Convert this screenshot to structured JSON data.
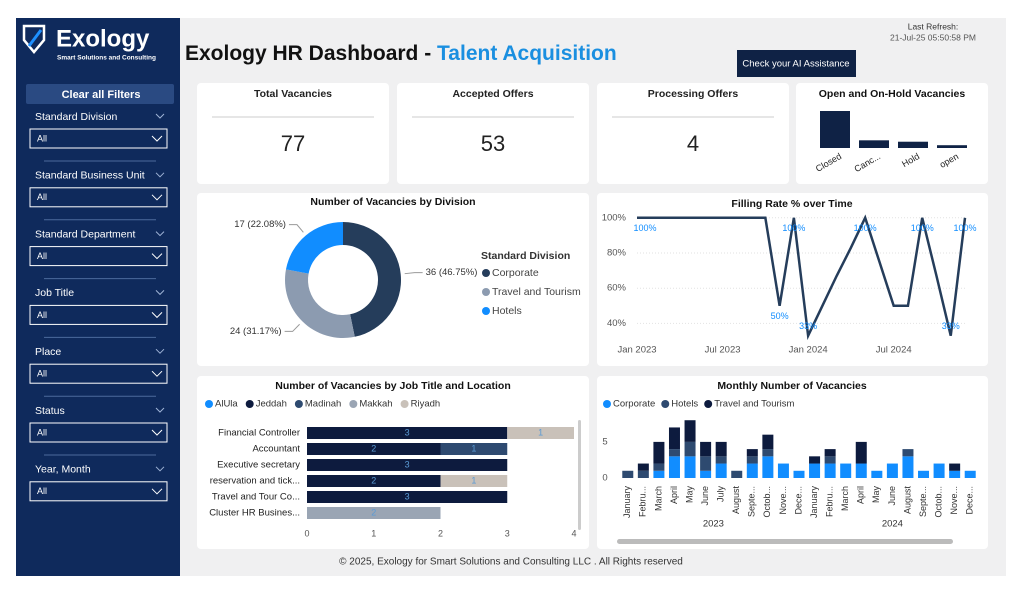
{
  "header": {
    "logo": "Exology",
    "tagline": "Smart Solutions and Consulting",
    "title": "Exology HR Dashboard - ",
    "title_accent": "Talent Acquisition",
    "refresh_label": "Last Refresh:",
    "refresh_time": "21-Jul-25 05:50:58 PM",
    "button": "Check your AI Assistance"
  },
  "sidebar": {
    "clear": "Clear all Filters",
    "filters": [
      {
        "label": "Standard Division",
        "value": "All"
      },
      {
        "label": "Standard Business Unit",
        "value": "All"
      },
      {
        "label": "Standard Department",
        "value": "All"
      },
      {
        "label": "Job Title",
        "value": "All"
      },
      {
        "label": "Place",
        "value": "All"
      },
      {
        "label": "Status",
        "value": "All"
      },
      {
        "label": "Year, Month",
        "value": "All"
      }
    ]
  },
  "kpis": [
    {
      "title": "Total Vacancies",
      "value": 77
    },
    {
      "title": "Accepted Offers",
      "value": 53
    },
    {
      "title": "Processing Offers",
      "value": 4
    }
  ],
  "chart_data": [
    {
      "type": "bar",
      "title": "Open and On-Hold Vacancies",
      "categories": [
        "Closed",
        "Canc...",
        "Hold",
        "open"
      ],
      "values": [
        53,
        11,
        9,
        4
      ],
      "color": "#0f2245"
    },
    {
      "type": "donut",
      "title": "Number of Vacancies by Division",
      "legend_title": "Standard Division",
      "categories": [
        "Corporate",
        "Travel and Tourism",
        "Hotels"
      ],
      "values": [
        36,
        24,
        17
      ],
      "value_labels": [
        "36 (46.75%)",
        "24 (31.17%)",
        "17 (22.08%)"
      ],
      "colors": [
        "#253d5b",
        "#8c9bb0",
        "#118dff"
      ]
    },
    {
      "type": "line",
      "title": "Filling Rate % over Time",
      "color": "#253d5b",
      "label_color": "#118dff",
      "x": [
        "2023-01",
        "2023-02",
        "2023-03",
        "2023-04",
        "2023-05",
        "2023-06",
        "2023-07",
        "2023-08",
        "2023-09",
        "2023-10",
        "2023-11",
        "2023-12",
        "2024-01",
        "2024-02",
        "2024-03",
        "2024-04",
        "2024-05",
        "2024-06",
        "2024-07",
        "2024-08",
        "2024-09",
        "2024-10",
        "2024-11",
        "2024-12"
      ],
      "values": [
        100,
        100,
        100,
        100,
        100,
        100,
        100,
        100,
        100,
        100,
        50,
        100,
        33,
        50,
        67,
        83,
        100,
        75,
        50,
        50,
        100,
        67,
        33,
        100
      ],
      "value_labels": [
        "100%",
        null,
        null,
        null,
        null,
        null,
        null,
        null,
        null,
        null,
        "50%",
        "100%",
        "33%",
        null,
        null,
        null,
        "100%",
        null,
        null,
        null,
        "100%",
        null,
        "33%",
        "100%"
      ],
      "xlim": [
        "2023-01",
        "2024-12"
      ],
      "xticks": [
        {
          "value": "2023-01",
          "label": "Jan 2023"
        },
        {
          "value": "2023-07",
          "label": "Jul 2023"
        },
        {
          "value": "2024-01",
          "label": "Jan 2024"
        },
        {
          "value": "2024-07",
          "label": "Jul 2024"
        }
      ],
      "ylim": [
        30,
        105
      ],
      "yticks": [
        {
          "value": 40,
          "label": "40%"
        },
        {
          "value": 60,
          "label": "60%"
        },
        {
          "value": 80,
          "label": "80%"
        },
        {
          "value": 100,
          "label": "100%"
        }
      ],
      "grid": true
    },
    {
      "type": "hbar",
      "title": "Number of Vacancies by Job Title and Location",
      "categories": [
        "Financial Controller",
        "Accountant",
        "Executive secretary",
        "reservation and tick...",
        "Travel and Tour Co...",
        "Cluster HR Busines..."
      ],
      "series": [
        {
          "name": "AlUla",
          "color": "#118dff",
          "values": [
            null,
            null,
            null,
            null,
            null,
            null
          ]
        },
        {
          "name": "Jeddah",
          "color": "#0d1b3e",
          "values": [
            3,
            2,
            3,
            2,
            3,
            null
          ]
        },
        {
          "name": "Madinah",
          "color": "#2e4a70",
          "values": [
            null,
            1,
            null,
            null,
            null,
            null
          ]
        },
        {
          "name": "Makkah",
          "color": "#9aa5b4",
          "values": [
            null,
            null,
            null,
            null,
            null,
            2
          ]
        },
        {
          "name": "Riyadh",
          "color": "#c9c1b9",
          "values": [
            1,
            null,
            null,
            1,
            null,
            null
          ]
        }
      ],
      "xlim": [
        0,
        4
      ],
      "xticks": [
        0,
        1,
        2,
        3,
        4
      ]
    },
    {
      "type": "column",
      "title": "Monthly Number of Vacancies",
      "categories": [
        "January",
        "Febru...",
        "March",
        "April",
        "May",
        "June",
        "July",
        "August",
        "Septe...",
        "Octob...",
        "Nove...",
        "Dece...",
        "January",
        "Febru...",
        "March",
        "April",
        "May",
        "June",
        "August",
        "Septe...",
        "Octob...",
        "Nove...",
        "Dece..."
      ],
      "category_years": [
        "2023",
        "2023",
        "2023",
        "2023",
        "2023",
        "2023",
        "2023",
        "2023",
        "2023",
        "2023",
        "2023",
        "2023",
        "2024",
        "2024",
        "2024",
        "2024",
        "2024",
        "2024",
        "2024",
        "2024",
        "2024",
        "2024",
        "2024"
      ],
      "series": [
        {
          "name": "Corporate",
          "color": "#118dff",
          "values": [
            0,
            0,
            1,
            3,
            3,
            1,
            2,
            0,
            2,
            3,
            2,
            1,
            2,
            2,
            2,
            2,
            1,
            2,
            3,
            1,
            2,
            1,
            1
          ]
        },
        {
          "name": "Hotels",
          "color": "#2e4a70",
          "values": [
            1,
            1,
            1,
            1,
            2,
            2,
            1,
            1,
            1,
            1,
            0,
            0,
            0,
            1,
            0,
            0,
            0,
            0,
            1,
            0,
            0,
            0,
            0
          ]
        },
        {
          "name": "Travel and Tourism",
          "color": "#0d1b3e",
          "values": [
            0,
            1,
            3,
            3,
            3,
            2,
            2,
            0,
            1,
            2,
            0,
            0,
            1,
            1,
            0,
            3,
            0,
            0,
            0,
            0,
            0,
            1,
            0
          ]
        }
      ],
      "ylim": [
        0,
        9
      ],
      "yticks": [
        0,
        5
      ]
    }
  ],
  "footer": "© 2025, Exology for Smart Solutions and Consulting LLC . All Rights reserved"
}
